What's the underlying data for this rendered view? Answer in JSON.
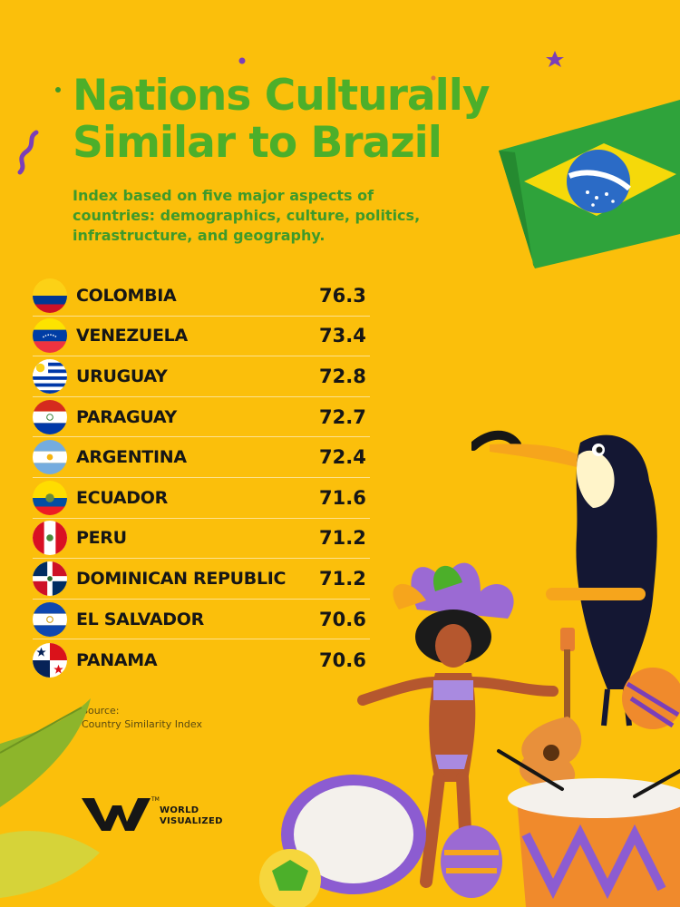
{
  "header": {
    "title_line1": "Nations Culturally",
    "title_line2": "Similar to Brazil",
    "subtitle": "Index based on five major aspects of countries: demographics, culture, politics, infrastructure, and geography."
  },
  "chart_data": {
    "type": "table",
    "title": "Nations Culturally Similar to Brazil",
    "subtitle": "Index based on five major aspects of countries: demographics, culture, politics, infrastructure, and geography.",
    "rows": [
      {
        "country": "COLOMBIA",
        "value": "76.3",
        "flag": "colombia-flag"
      },
      {
        "country": "VENEZUELA",
        "value": "73.4",
        "flag": "venezuela-flag"
      },
      {
        "country": "URUGUAY",
        "value": "72.8",
        "flag": "uruguay-flag"
      },
      {
        "country": "PARAGUAY",
        "value": "72.7",
        "flag": "paraguay-flag"
      },
      {
        "country": "ARGENTINA",
        "value": "72.4",
        "flag": "argentina-flag"
      },
      {
        "country": "ECUADOR",
        "value": "71.6",
        "flag": "ecuador-flag"
      },
      {
        "country": "PERU",
        "value": "71.2",
        "flag": "peru-flag"
      },
      {
        "country": "DOMINICAN REPUBLIC",
        "value": "71.2",
        "flag": "dominican-republic-flag"
      },
      {
        "country": "EL SALVADOR",
        "value": "70.6",
        "flag": "el-salvador-flag"
      },
      {
        "country": "PANAMA",
        "value": "70.6",
        "flag": "panama-flag"
      }
    ]
  },
  "source": {
    "label": "Source:",
    "text": "Country Similarity Index"
  },
  "brand": {
    "line1": "WORLD",
    "line2": "VISUALIZED",
    "trademark": "TM"
  },
  "colors": {
    "background": "#FBBF0B",
    "title": "#4CAF2A",
    "text": "#161616"
  }
}
